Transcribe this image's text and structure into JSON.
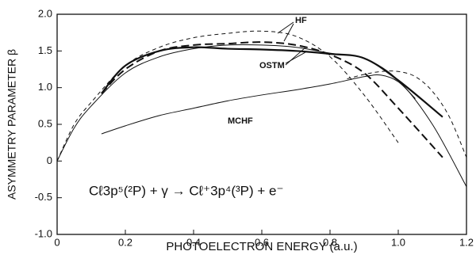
{
  "chart_data": {
    "type": "line",
    "xlabel": "PHOTOELECTRON ENERGY (a.u.)",
    "ylabel": "ASYMMETRY PARAMETER β",
    "annotations": [
      "HF",
      "OSTM",
      "MCHF",
      "Cℓ3p⁵(²P) + γ → Cℓ⁺3p⁴(³P) + e⁻"
    ],
    "xlim": [
      0,
      1.2
    ],
    "xticks": [
      0,
      0.2,
      0.4,
      0.6,
      0.8,
      {
        "value": 1,
        "label": "1.0"
      },
      1.2
    ],
    "ylim": [
      -1,
      2
    ],
    "yticks": [
      {
        "value": -1,
        "label": "-1.0"
      },
      -0.5,
      0,
      0.5,
      {
        "value": 1,
        "label": "1.0"
      },
      1.5,
      {
        "value": 2,
        "label": "2.0"
      }
    ],
    "grid": false,
    "series": [
      {
        "name": "HF",
        "color": "#111",
        "dash": true,
        "width": 1,
        "x": [
          0,
          0.05,
          0.1,
          0.2,
          0.3,
          0.4,
          0.5,
          0.6,
          0.7,
          0.8,
          0.9,
          1.0
        ],
        "values": [
          0,
          0.5,
          0.8,
          1.3,
          1.55,
          1.68,
          1.74,
          1.77,
          1.7,
          1.42,
          0.9,
          0.25
        ]
      },
      {
        "color": "#111",
        "dash": false,
        "width": 1,
        "x": [
          0,
          0.05,
          0.1,
          0.2,
          0.3,
          0.4,
          0.5,
          0.6,
          0.7,
          0.8,
          0.9,
          1.0,
          1.1,
          1.2
        ],
        "values": [
          0,
          0.45,
          0.75,
          1.2,
          1.42,
          1.53,
          1.58,
          1.58,
          1.55,
          1.47,
          1.4,
          1.1,
          0.5,
          -0.35
        ]
      },
      {
        "name": "OSTM",
        "color": "#111",
        "dash": false,
        "width": 2.2,
        "x": [
          0.13,
          0.2,
          0.3,
          0.4,
          0.5,
          0.6,
          0.7,
          0.8,
          0.9,
          1.0,
          1.13
        ],
        "values": [
          0.92,
          1.3,
          1.5,
          1.55,
          1.53,
          1.52,
          1.5,
          1.46,
          1.4,
          1.1,
          0.6
        ]
      },
      {
        "color": "#111",
        "dash": true,
        "width": 2,
        "x": [
          0.13,
          0.2,
          0.3,
          0.4,
          0.5,
          0.6,
          0.7,
          0.8,
          0.9,
          1.0,
          1.13
        ],
        "values": [
          0.92,
          1.25,
          1.5,
          1.58,
          1.6,
          1.62,
          1.58,
          1.45,
          1.2,
          0.72,
          0.05
        ]
      },
      {
        "name": "MCHF",
        "color": "#111",
        "dash": false,
        "width": 1,
        "x": [
          0.13,
          0.2,
          0.3,
          0.4,
          0.5,
          0.6,
          0.7,
          0.8,
          0.9,
          0.95,
          1.0,
          1.05
        ],
        "values": [
          0.37,
          0.48,
          0.62,
          0.72,
          0.82,
          0.9,
          0.97,
          1.05,
          1.15,
          1.17,
          1.08,
          0.85
        ]
      },
      {
        "color": "#111",
        "dash": true,
        "width": 1,
        "x": [
          0.85,
          0.9,
          0.95,
          1.0,
          1.05,
          1.1,
          1.15,
          1.2
        ],
        "values": [
          1.12,
          1.18,
          1.22,
          1.22,
          1.15,
          0.95,
          0.6,
          0.05
        ]
      }
    ]
  }
}
